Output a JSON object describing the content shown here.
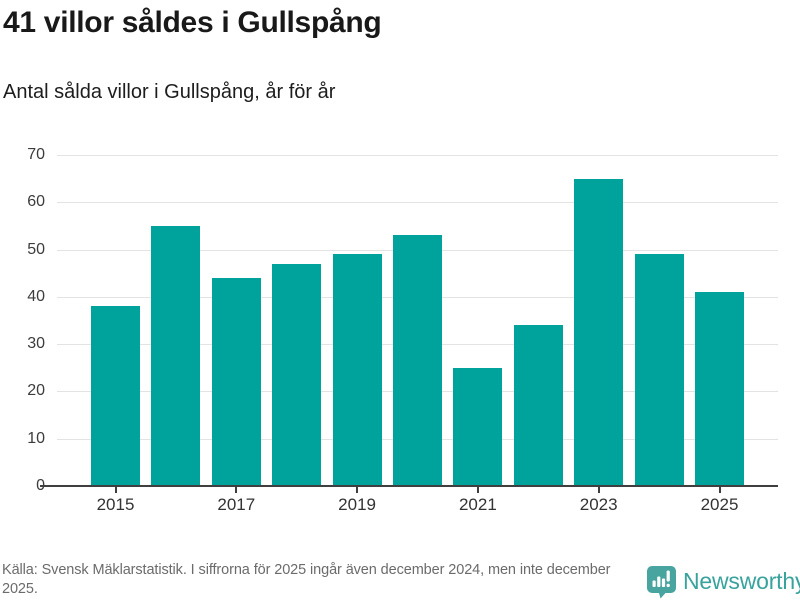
{
  "chart_data": {
    "type": "bar",
    "title": "41 villor såldes i Gullspång",
    "subtitle": "Antal sålda villor i Gullspång, år för år",
    "categories": [
      "2015",
      "2016",
      "2017",
      "2018",
      "2019",
      "2020",
      "2021",
      "2022",
      "2023",
      "2024",
      "2025"
    ],
    "values": [
      38,
      55,
      44,
      47,
      49,
      53,
      25,
      34,
      65,
      49,
      41
    ],
    "xlabel": "",
    "ylabel": "",
    "ylim": [
      0,
      70
    ],
    "yticks": [
      0,
      10,
      20,
      30,
      40,
      50,
      60,
      70
    ],
    "xtick_labels": [
      "2015",
      "2017",
      "2019",
      "2021",
      "2023",
      "2025"
    ],
    "xtick_indices": [
      0,
      2,
      4,
      6,
      8,
      10
    ],
    "grid": true,
    "legend": false,
    "bar_color": "#00a39b",
    "axis_color": "#3f3f3f",
    "grid_color": "#e3e3e3",
    "tick_label_color": "#3c3c3c"
  },
  "footer": {
    "source_text": "Källa: Svensk Mäklarstatistik. I siffrorna för 2025 ingår även december 2024, men inte december 2025.",
    "brand": "Newsworthy",
    "brand_color": "#38a39c",
    "logo_color": "#47a49e",
    "logo_glyph": "bar-chart-exclamation-speech-bubble"
  }
}
